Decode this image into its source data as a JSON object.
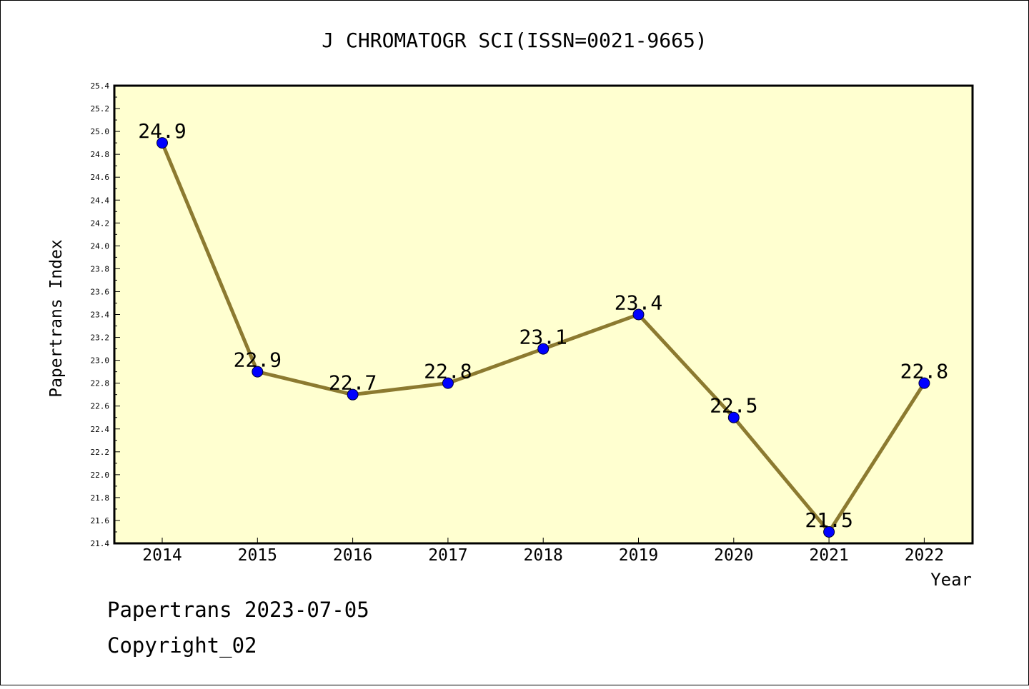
{
  "chart_data": {
    "type": "line",
    "title": "J CHROMATOGR SCI(ISSN=0021-9665)",
    "xlabel": "Year",
    "ylabel": "Papertrans Index",
    "categories": [
      "2014",
      "2015",
      "2016",
      "2017",
      "2018",
      "2019",
      "2020",
      "2021",
      "2022"
    ],
    "values": [
      24.9,
      22.9,
      22.7,
      22.8,
      23.1,
      23.4,
      22.5,
      21.5,
      22.8
    ],
    "data_labels": [
      "24.9",
      "22.9",
      "22.7",
      "22.8",
      "23.1",
      "23.4",
      "22.5",
      "21.5",
      "22.8"
    ],
    "ylim": [
      21.4,
      25.4
    ],
    "yticks": [
      "21.4",
      "21.6",
      "21.8",
      "22.0",
      "22.2",
      "22.4",
      "22.6",
      "22.8",
      "23.0",
      "23.2",
      "23.4",
      "23.6",
      "23.8",
      "24.0",
      "24.2",
      "24.4",
      "24.6",
      "24.8",
      "25.0",
      "25.2",
      "25.4"
    ],
    "grid": false,
    "colors": {
      "plot_background": "#ffffd0",
      "line": "#8c7a30",
      "marker": "#0000ff"
    }
  },
  "footer": {
    "line1": "Papertrans 2023-07-05",
    "line2": "Copyright_02"
  }
}
